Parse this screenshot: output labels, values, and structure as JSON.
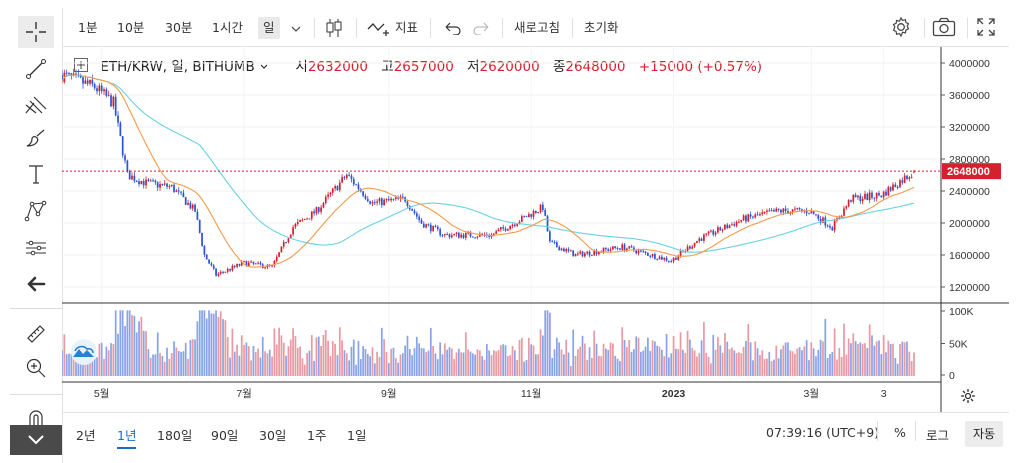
{
  "toolbar": {
    "intervals": [
      "1분",
      "10분",
      "30분",
      "1시간",
      "일"
    ],
    "selected_interval": "일",
    "indicators_label": "지표",
    "refresh_label": "새로고침",
    "reset_label": "초기화"
  },
  "legend": {
    "symbol": "ETH/KRW, 일, BITHUMB",
    "open_label": "시",
    "open": "2632000",
    "high_label": "고",
    "high": "2657000",
    "low_label": "저",
    "low": "2620000",
    "close_label": "종",
    "close": "2648000",
    "change": "+15000 (+0.57%)"
  },
  "price_axis": [
    "4000000",
    "3600000",
    "3200000",
    "2800000",
    "2400000",
    "2000000",
    "1600000",
    "1200000"
  ],
  "last_price": "2648000",
  "volume_axis": [
    "100K",
    "50K",
    "0"
  ],
  "time_axis": [
    "5월",
    "7월",
    "9월",
    "11월",
    "2023",
    "3월",
    "3"
  ],
  "bottom": {
    "ranges": [
      "2년",
      "1년",
      "180일",
      "90일",
      "30일",
      "1주",
      "1일"
    ],
    "selected_range": "1년",
    "clock": "07:39:16 (UTC+9)",
    "percent_label": "%",
    "log_label": "로그",
    "auto_label": "자동"
  },
  "colors": {
    "up": "#d6202e",
    "down": "#2c55d6",
    "ma_short": "#f29b4c",
    "ma_long": "#6bd0e4"
  },
  "chart_data": {
    "type": "candlestick",
    "title": "ETH/KRW, 일, BITHUMB",
    "y_range": [
      1000000,
      4200000
    ],
    "close_path": [
      [
        "2022-04-14",
        3850000
      ],
      [
        "2022-04-28",
        3700000
      ],
      [
        "2022-05-06",
        3500000
      ],
      [
        "2022-05-12",
        2600000
      ],
      [
        "2022-05-20",
        2500000
      ],
      [
        "2022-05-31",
        2450000
      ],
      [
        "2022-06-10",
        2150000
      ],
      [
        "2022-06-14",
        1600000
      ],
      [
        "2022-06-19",
        1350000
      ],
      [
        "2022-07-01",
        1500000
      ],
      [
        "2022-07-13",
        1450000
      ],
      [
        "2022-07-22",
        1950000
      ],
      [
        "2022-08-01",
        2150000
      ],
      [
        "2022-08-14",
        2600000
      ],
      [
        "2022-08-25",
        2250000
      ],
      [
        "2022-09-08",
        2300000
      ],
      [
        "2022-09-15",
        2000000
      ],
      [
        "2022-09-25",
        1850000
      ],
      [
        "2022-10-15",
        1850000
      ],
      [
        "2022-10-28",
        2050000
      ],
      [
        "2022-11-06",
        2200000
      ],
      [
        "2022-11-09",
        1750000
      ],
      [
        "2022-11-20",
        1600000
      ],
      [
        "2022-12-10",
        1700000
      ],
      [
        "2022-12-31",
        1530000
      ],
      [
        "2023-01-12",
        1800000
      ],
      [
        "2023-01-31",
        2050000
      ],
      [
        "2023-02-15",
        2150000
      ],
      [
        "2023-02-28",
        2150000
      ],
      [
        "2023-03-10",
        1950000
      ],
      [
        "2023-03-18",
        2300000
      ],
      [
        "2023-03-31",
        2350000
      ],
      [
        "2023-04-14",
        2648000
      ]
    ]
  }
}
